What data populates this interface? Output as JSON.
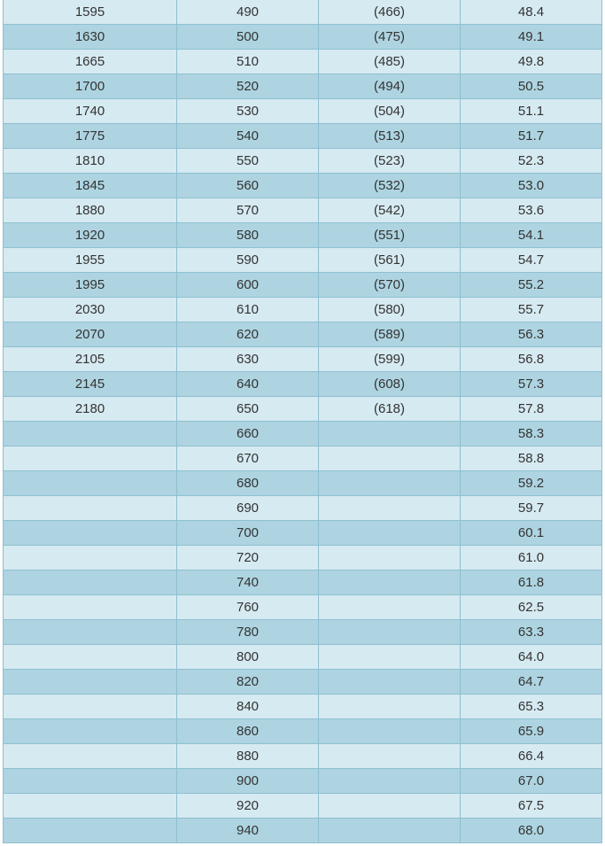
{
  "table": {
    "rows": [
      [
        "1595",
        "490",
        "(466)",
        "48.4"
      ],
      [
        "1630",
        "500",
        "(475)",
        "49.1"
      ],
      [
        "1665",
        "510",
        "(485)",
        "49.8"
      ],
      [
        "1700",
        "520",
        "(494)",
        "50.5"
      ],
      [
        "1740",
        "530",
        "(504)",
        "51.1"
      ],
      [
        "1775",
        "540",
        "(513)",
        "51.7"
      ],
      [
        "1810",
        "550",
        "(523)",
        "52.3"
      ],
      [
        "1845",
        "560",
        "(532)",
        "53.0"
      ],
      [
        "1880",
        "570",
        "(542)",
        "53.6"
      ],
      [
        "1920",
        "580",
        "(551)",
        "54.1"
      ],
      [
        "1955",
        "590",
        "(561)",
        "54.7"
      ],
      [
        "1995",
        "600",
        "(570)",
        "55.2"
      ],
      [
        "2030",
        "610",
        "(580)",
        "55.7"
      ],
      [
        "2070",
        "620",
        "(589)",
        "56.3"
      ],
      [
        "2105",
        "630",
        "(599)",
        "56.8"
      ],
      [
        "2145",
        "640",
        "(608)",
        "57.3"
      ],
      [
        "2180",
        "650",
        "(618)",
        "57.8"
      ],
      [
        "",
        "660",
        "",
        "58.3"
      ],
      [
        "",
        "670",
        "",
        "58.8"
      ],
      [
        "",
        "680",
        "",
        "59.2"
      ],
      [
        "",
        "690",
        "",
        "59.7"
      ],
      [
        "",
        "700",
        "",
        "60.1"
      ],
      [
        "",
        "720",
        "",
        "61.0"
      ],
      [
        "",
        "740",
        "",
        "61.8"
      ],
      [
        "",
        "760",
        "",
        "62.5"
      ],
      [
        "",
        "780",
        "",
        "63.3"
      ],
      [
        "",
        "800",
        "",
        "64.0"
      ],
      [
        "",
        "820",
        "",
        "64.7"
      ],
      [
        "",
        "840",
        "",
        "65.3"
      ],
      [
        "",
        "860",
        "",
        "65.9"
      ],
      [
        "",
        "880",
        "",
        "66.4"
      ],
      [
        "",
        "900",
        "",
        "67.0"
      ],
      [
        "",
        "920",
        "",
        "67.5"
      ],
      [
        "",
        "940",
        "",
        "68.0"
      ]
    ]
  },
  "colors": {
    "row_light": "#d6eaf1",
    "row_dark": "#aed4e1",
    "border": "#8ebfd1",
    "text": "#333333"
  }
}
